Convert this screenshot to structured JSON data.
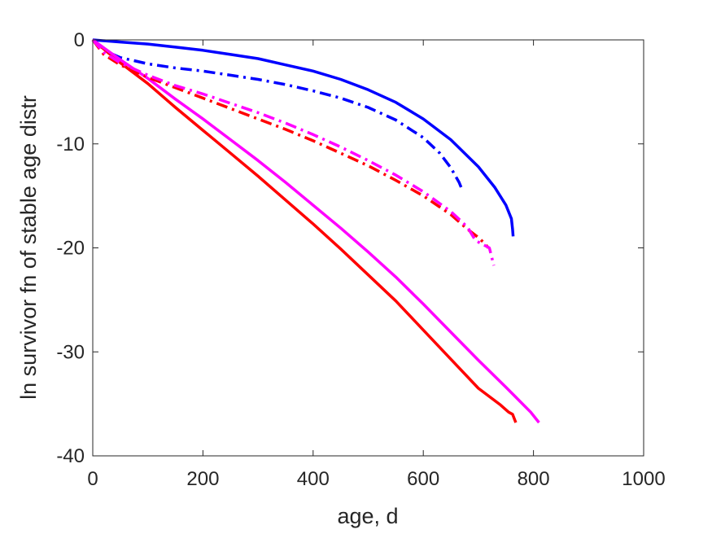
{
  "chart_data": {
    "type": "line",
    "title": "",
    "xlabel": "age, d",
    "ylabel": "ln survivor fn of stable age distr",
    "xlim": [
      0,
      1000
    ],
    "ylim": [
      -40,
      0
    ],
    "xticks": [
      0,
      200,
      400,
      600,
      800,
      1000
    ],
    "yticks": [
      0,
      -10,
      -20,
      -30,
      -40
    ],
    "xtick_labels": [
      "0",
      "200",
      "400",
      "600",
      "800",
      "1000"
    ],
    "ytick_labels": [
      "0",
      "-10",
      "-20",
      "-30",
      "-40"
    ],
    "grid": false,
    "legend": "none",
    "series": [
      {
        "color": "#0000ff",
        "style": "solid",
        "x": [
          0,
          50,
          100,
          150,
          200,
          250,
          300,
          350,
          400,
          450,
          500,
          550,
          600,
          650,
          700,
          730,
          750,
          760,
          762,
          763
        ],
        "y": [
          0,
          -0.2,
          -0.4,
          -0.7,
          -1.0,
          -1.4,
          -1.8,
          -2.4,
          -3.0,
          -3.8,
          -4.8,
          -6.0,
          -7.6,
          -9.6,
          -12.2,
          -14.2,
          -15.9,
          -17.2,
          -18.2,
          -18.9
        ]
      },
      {
        "color": "#0000ff",
        "style": "dashdot",
        "x": [
          0,
          20,
          50,
          100,
          150,
          200,
          250,
          300,
          350,
          400,
          450,
          500,
          550,
          600,
          630,
          650,
          665,
          672
        ],
        "y": [
          0,
          -1.0,
          -1.7,
          -2.3,
          -2.7,
          -3.0,
          -3.4,
          -3.8,
          -4.3,
          -4.9,
          -5.6,
          -6.5,
          -7.7,
          -9.4,
          -10.9,
          -12.3,
          -13.7,
          -14.6
        ]
      },
      {
        "color": "#ff0000",
        "style": "solid",
        "x": [
          0,
          50,
          100,
          150,
          200,
          250,
          300,
          350,
          400,
          450,
          500,
          550,
          600,
          650,
          700,
          740,
          755,
          762,
          768
        ],
        "y": [
          0,
          -2.2,
          -4.2,
          -6.5,
          -8.7,
          -10.9,
          -13.1,
          -15.4,
          -17.7,
          -20.1,
          -22.6,
          -25.1,
          -27.9,
          -30.7,
          -33.5,
          -35.1,
          -35.8,
          -36.0,
          -36.8
        ]
      },
      {
        "color": "#ff00ff",
        "style": "solid",
        "x": [
          0,
          50,
          100,
          150,
          200,
          250,
          300,
          350,
          400,
          450,
          500,
          550,
          600,
          650,
          700,
          750,
          795,
          810
        ],
        "y": [
          0,
          -1.9,
          -3.7,
          -5.7,
          -7.6,
          -9.6,
          -11.6,
          -13.7,
          -15.9,
          -18.1,
          -20.4,
          -22.8,
          -25.4,
          -28.1,
          -30.8,
          -33.4,
          -35.8,
          -36.8
        ]
      },
      {
        "color": "#ff0000",
        "style": "dashdot",
        "x": [
          0,
          20,
          50,
          100,
          150,
          200,
          250,
          300,
          350,
          400,
          450,
          500,
          550,
          600,
          650,
          680,
          700,
          712,
          718
        ],
        "y": [
          0,
          -1.4,
          -2.4,
          -3.6,
          -4.6,
          -5.6,
          -6.6,
          -7.6,
          -8.6,
          -9.7,
          -10.9,
          -12.1,
          -13.5,
          -15.0,
          -16.8,
          -18.2,
          -19.0,
          -19.6,
          -20.0
        ]
      },
      {
        "color": "#ff00ff",
        "style": "dashdot",
        "x": [
          0,
          20,
          50,
          100,
          150,
          200,
          250,
          300,
          350,
          400,
          450,
          500,
          550,
          600,
          650,
          680,
          695,
          720,
          728
        ],
        "y": [
          0,
          -1.2,
          -2.2,
          -3.4,
          -4.4,
          -5.2,
          -6.1,
          -7.0,
          -8.0,
          -9.1,
          -10.3,
          -11.6,
          -13.0,
          -14.6,
          -16.5,
          -18.0,
          -19.3,
          -20.0,
          -21.7
        ]
      }
    ]
  }
}
